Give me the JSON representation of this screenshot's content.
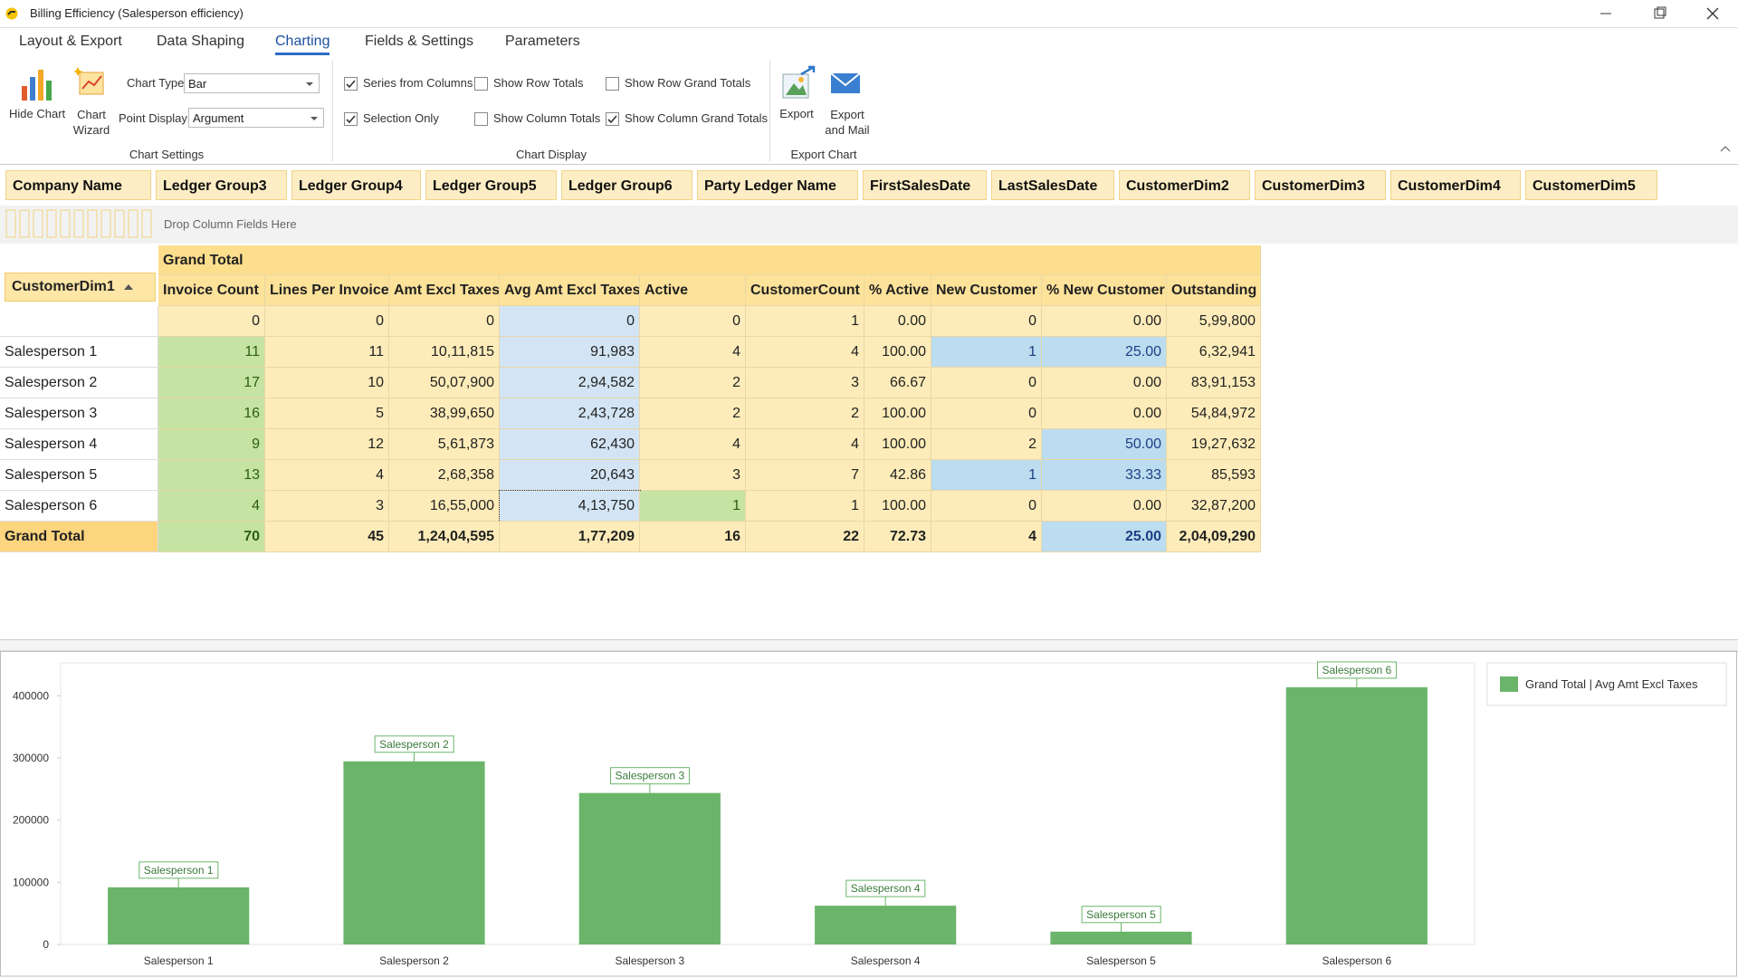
{
  "window": {
    "title": "Billing Efficiency (Salesperson efficiency)"
  },
  "ribbon": {
    "tabs": [
      "Layout & Export",
      "Data Shaping",
      "Charting",
      "Fields & Settings",
      "Parameters"
    ],
    "active_tab": 2,
    "chart_settings": {
      "hide_chart": "Hide Chart",
      "chart_wizard": "Chart Wizard",
      "chart_type_label": "Chart Type",
      "chart_type": "Bar",
      "point_display_label": "Point Display",
      "point_display": "Argument",
      "group_label": "Chart Settings"
    },
    "chart_display": {
      "options": [
        {
          "label": "Series from Columns",
          "checked": true
        },
        {
          "label": "Selection Only",
          "checked": true
        },
        {
          "label": "Show Row Totals",
          "checked": false
        },
        {
          "label": "Show Column Totals",
          "checked": false
        },
        {
          "label": "Show Row Grand Totals",
          "checked": false
        },
        {
          "label": "Show Column Grand Totals",
          "checked": true
        }
      ],
      "group_label": "Chart Display"
    },
    "export_chart": {
      "export": "Export",
      "export_and_mail": "Export and Mail",
      "group_label": "Export Chart"
    }
  },
  "filter_fields": [
    "Company Name",
    "Ledger Group3",
    "Ledger Group4",
    "Ledger Group5",
    "Ledger Group6",
    "Party Ledger Name",
    "FirstSalesDate",
    "LastSalesDate",
    "CustomerDim2",
    "CustomerDim3",
    "CustomerDim4",
    "CustomerDim5"
  ],
  "drop_hint": "Drop Column Fields Here",
  "pivot": {
    "grand_total_header": "Grand Total",
    "row_field": "CustomerDim1",
    "columns": [
      "Invoice Count",
      "Lines Per Invoice",
      "Amt Excl Taxes",
      "Avg Amt Excl Taxes",
      "Active",
      "CustomerCount",
      "% Active",
      "New Customer",
      "% New Customer",
      "Outstanding"
    ],
    "rows": [
      {
        "label": null,
        "cells": [
          "0",
          "0",
          "0",
          "0",
          "0",
          "1",
          "0.00",
          "0",
          "0.00",
          "5,99,800"
        ]
      },
      {
        "label": "Salesperson 1",
        "cells": [
          "11",
          "11",
          "10,11,815",
          "91,983",
          "4",
          "4",
          "100.00",
          "1",
          "25.00",
          "6,32,941"
        ]
      },
      {
        "label": "Salesperson 2",
        "cells": [
          "17",
          "10",
          "50,07,900",
          "2,94,582",
          "2",
          "3",
          "66.67",
          "0",
          "0.00",
          "83,91,153"
        ]
      },
      {
        "label": "Salesperson 3",
        "cells": [
          "16",
          "5",
          "38,99,650",
          "2,43,728",
          "2",
          "2",
          "100.00",
          "0",
          "0.00",
          "54,84,972"
        ]
      },
      {
        "label": "Salesperson 4",
        "cells": [
          "9",
          "12",
          "5,61,873",
          "62,430",
          "4",
          "4",
          "100.00",
          "2",
          "50.00",
          "19,27,632"
        ]
      },
      {
        "label": "Salesperson 5",
        "cells": [
          "13",
          "4",
          "2,68,358",
          "20,643",
          "3",
          "7",
          "42.86",
          "1",
          "33.33",
          "85,593"
        ]
      },
      {
        "label": "Salesperson 6",
        "cells": [
          "4",
          "3",
          "16,55,000",
          "4,13,750",
          "1",
          "1",
          "100.00",
          "0",
          "0.00",
          "32,87,200"
        ]
      }
    ],
    "total": {
      "label": "Grand Total",
      "cells": [
        "70",
        "45",
        "1,24,04,595",
        "1,77,209",
        "16",
        "22",
        "72.73",
        "4",
        "25.00",
        "2,04,09,290"
      ]
    }
  },
  "chart_data": {
    "type": "bar",
    "categories": [
      "Salesperson 1",
      "Salesperson 2",
      "Salesperson 3",
      "Salesperson 4",
      "Salesperson 5",
      "Salesperson 6"
    ],
    "series": [
      {
        "name": "Grand Total | Avg Amt Excl Taxes",
        "color": "#6bb56b",
        "values": [
          91983,
          294582,
          243728,
          62430,
          20643,
          413750
        ]
      }
    ],
    "ylim": [
      0,
      453000
    ],
    "yticks": [
      0,
      100000,
      200000,
      300000,
      400000
    ],
    "grid": false,
    "legend": "right"
  }
}
